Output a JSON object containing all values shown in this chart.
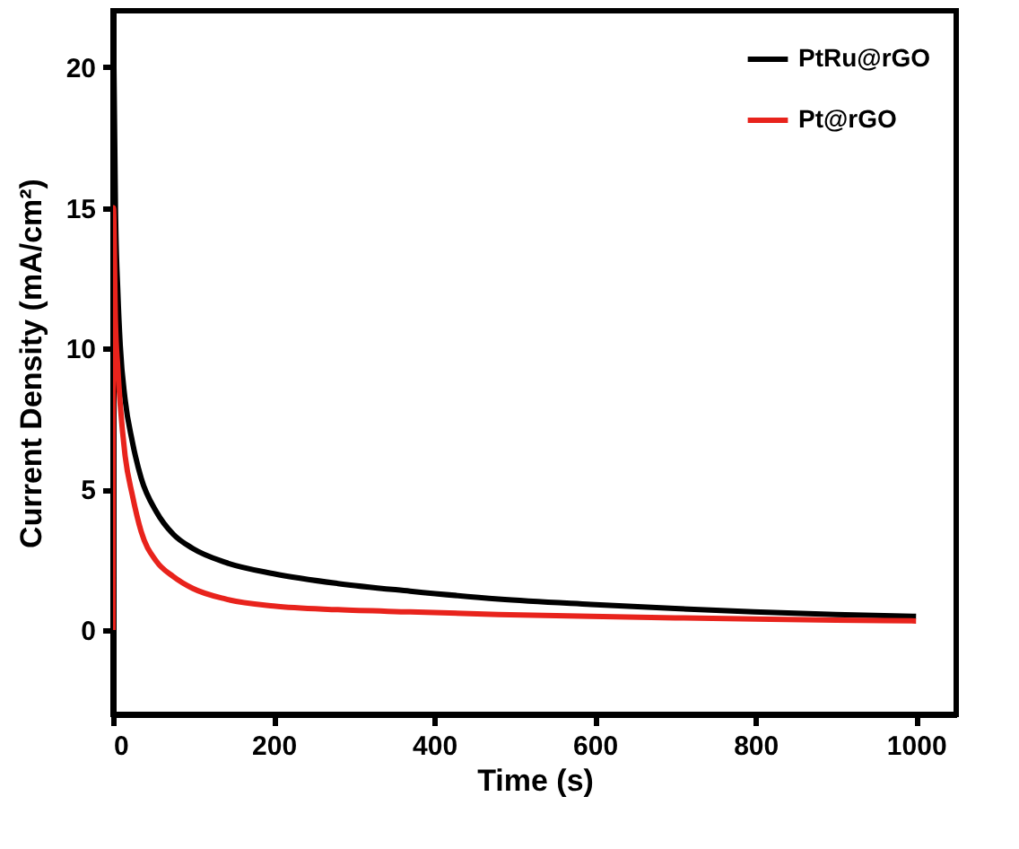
{
  "chart_data": {
    "type": "line",
    "xlabel": "Time (s)",
    "ylabel": "Current Density (mA/cm²)",
    "xlim": [
      0,
      1050
    ],
    "xticks": [
      0,
      200,
      400,
      600,
      800,
      1000
    ],
    "ylim": [
      -3,
      22
    ],
    "yticks": [
      0,
      5,
      10,
      15,
      20
    ],
    "legend": "top right",
    "grid": false,
    "line_style": "solid",
    "marker": "none",
    "series": [
      {
        "name": "PtRu@rGO",
        "color": "#000000",
        "x": [
          1,
          3,
          6,
          9,
          15,
          24,
          35,
          54,
          75,
          99,
          140,
          200,
          280,
          370,
          480,
          595,
          700,
          798,
          900,
          1000
        ],
        "values": [
          20.3,
          15,
          12,
          10.1,
          8.2,
          6.7,
          5.4,
          4.2,
          3.4,
          2.9,
          2.4,
          2.0,
          1.65,
          1.38,
          1.1,
          0.91,
          0.76,
          0.64,
          0.55,
          0.48
        ]
      },
      {
        "name": "Pt@rGO",
        "color": "#e8231c",
        "x": [
          0,
          0.5,
          3,
          6,
          9,
          15,
          24,
          35,
          54,
          75,
          99,
          140,
          200,
          280,
          370,
          480,
          595,
          700,
          800,
          900,
          1000
        ],
        "values": [
          0,
          15,
          11,
          9.3,
          8,
          6.2,
          4.8,
          3.5,
          2.44,
          1.9,
          1.48,
          1.1,
          0.85,
          0.72,
          0.64,
          0.55,
          0.48,
          0.43,
          0.39,
          0.35,
          0.32
        ]
      }
    ]
  }
}
